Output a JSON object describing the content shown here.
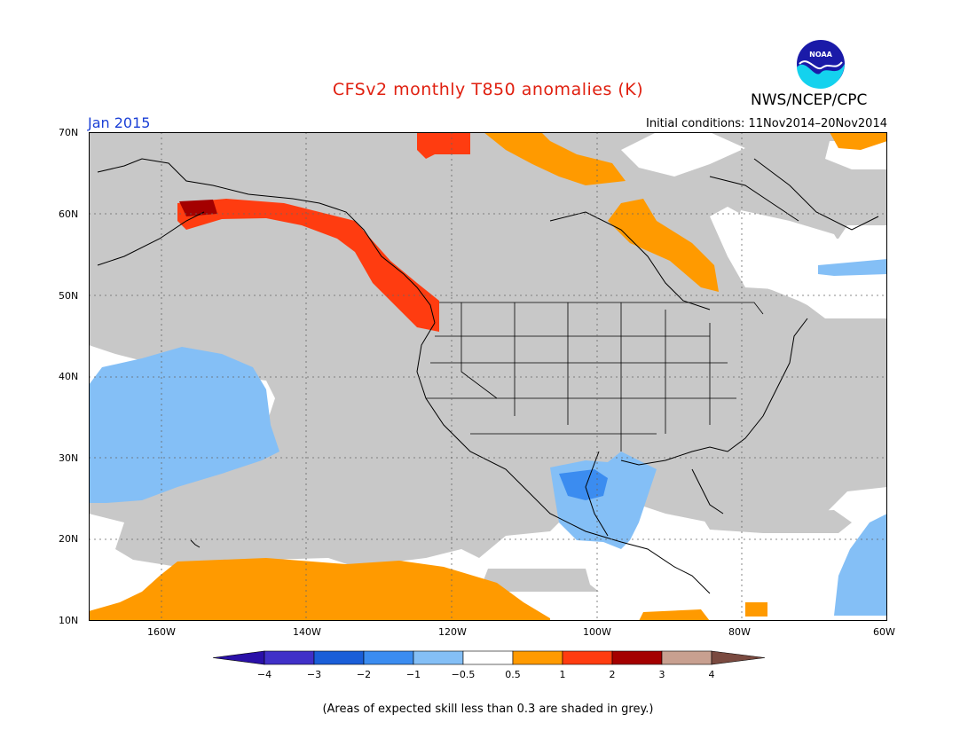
{
  "title": "CFSv2 monthly T850 anomalies (K)",
  "agency": "NWS/NCEP/CPC",
  "logo_text": "NOAA",
  "month": "Jan 2015",
  "initial_conditions": "Initial conditions: 11Nov2014–20Nov2014",
  "footnote": "(Areas of expected skill less than 0.3 are shaded in grey.)",
  "map": {
    "lat_labels": [
      "70N",
      "60N",
      "50N",
      "40N",
      "30N",
      "20N",
      "10N"
    ],
    "lon_labels": [
      "160W",
      "140W",
      "120W",
      "100W",
      "80W",
      "60W"
    ],
    "lon_range": [
      -170,
      -60
    ],
    "lat_range": [
      10,
      70
    ]
  },
  "legend": {
    "ticks": [
      "−4",
      "−3",
      "−2",
      "−1",
      "−0.5",
      "0.5",
      "1",
      "2",
      "3",
      "4"
    ],
    "colors": [
      "#2a10a8",
      "#4030c8",
      "#1a5ed8",
      "#3b8cf0",
      "#84bff6",
      "#ffffff",
      "#ff9a00",
      "#ff3c10",
      "#a40000",
      "#c8a090",
      "#7a4a40"
    ]
  },
  "colors": {
    "skill_grey": "#c8c8c8",
    "title_red": "#e02010",
    "month_blue": "#1a3fd6"
  }
}
